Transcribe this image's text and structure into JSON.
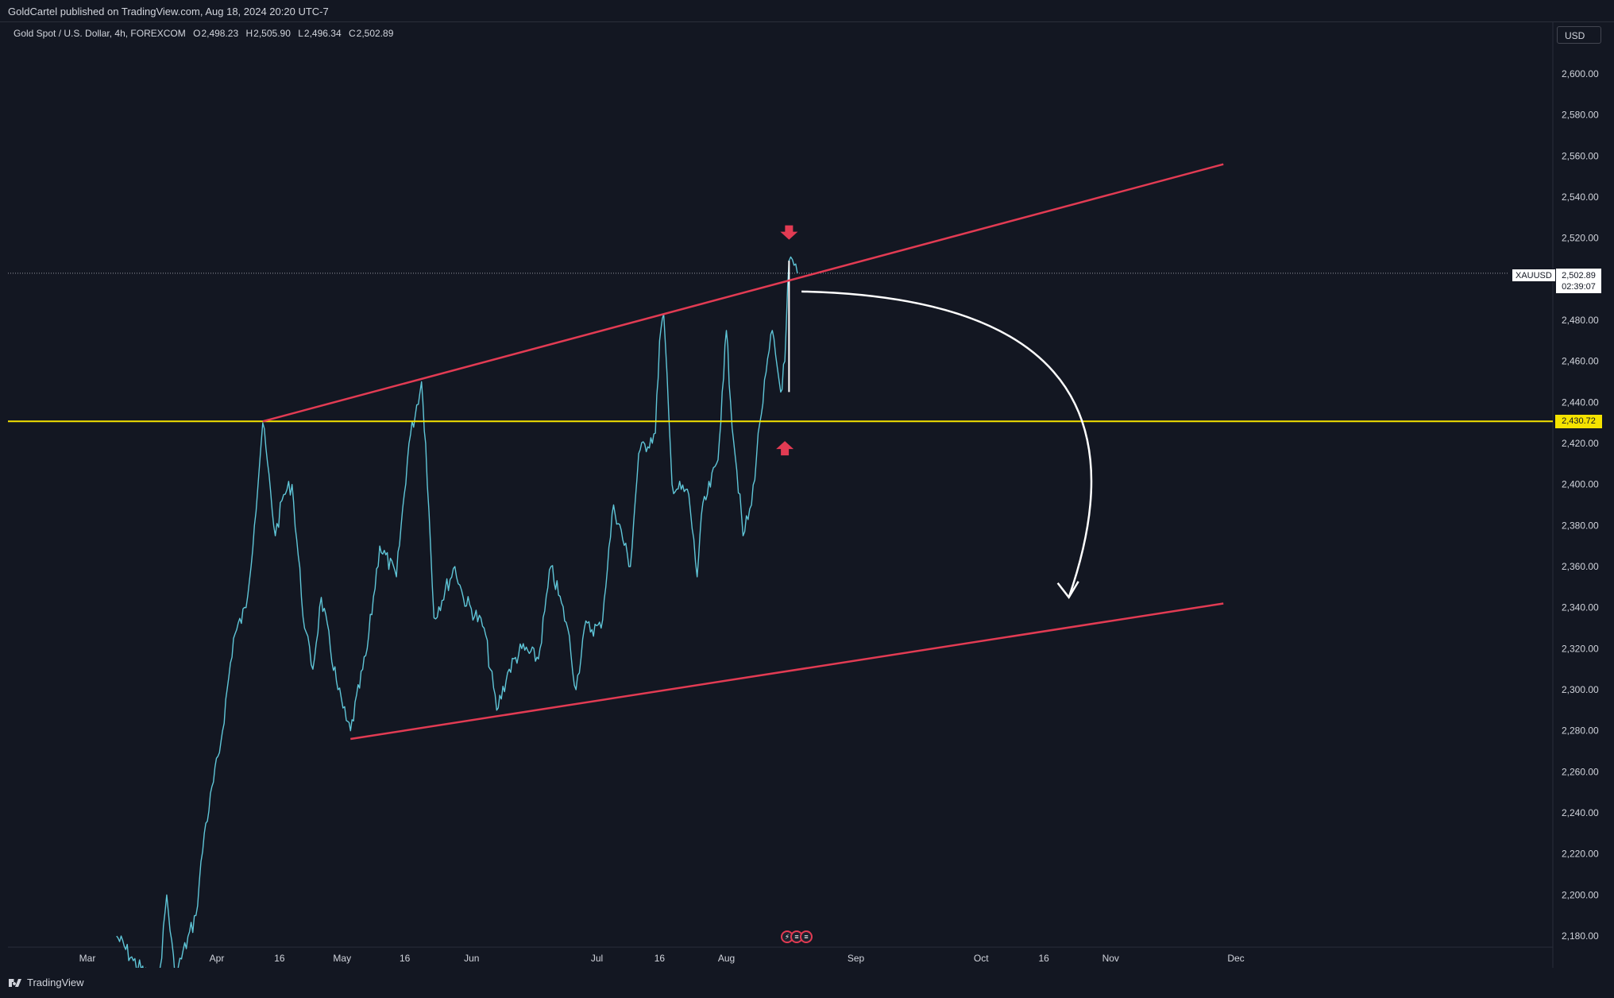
{
  "header": {
    "published_text": "GoldCartel published on TradingView.com, Aug 18, 2024 20:20 UTC-7"
  },
  "legend": {
    "title": "Gold Spot / U.S. Dollar, 4h, FOREXCOM",
    "open_label": "O",
    "open": "2,498.23",
    "high_label": "H",
    "high": "2,505.90",
    "low_label": "L",
    "low": "2,496.34",
    "close_label": "C",
    "close": "2,502.89"
  },
  "currency": "USD",
  "footer": {
    "brand": "TradingView"
  },
  "last_price": {
    "symbol": "XAUUSD",
    "price": "2,502.89",
    "countdown": "02:39:07"
  },
  "reference_line": {
    "price": "2,430.72",
    "color": "#f5e300"
  },
  "colors": {
    "background": "#131722",
    "candles": "#5fc6d8",
    "channel": "#e23b53",
    "arrow": "#ffffff",
    "reference": "#f5e300"
  },
  "events_icon_names": [
    "lightning-icon",
    "us-flag-icon",
    "us-flag-icon"
  ],
  "chart_data": {
    "type": "line",
    "symbol": "XAUUSD",
    "timeframe": "4h",
    "y_axis": {
      "ticks": [
        "2,180.00",
        "2,200.00",
        "2,220.00",
        "2,240.00",
        "2,260.00",
        "2,280.00",
        "2,300.00",
        "2,320.00",
        "2,340.00",
        "2,360.00",
        "2,380.00",
        "2,400.00",
        "2,420.00",
        "2,440.00",
        "2,460.00",
        "2,480.00",
        "2,500.00",
        "2,520.00",
        "2,540.00",
        "2,560.00",
        "2,580.00",
        "2,600.00"
      ],
      "ylim": [
        2172,
        2622
      ]
    },
    "x_axis": {
      "ticks": [
        "Mar",
        "Apr",
        "16",
        "May",
        "16",
        "Jun",
        "Jul",
        "16",
        "Aug",
        "Sep",
        "Oct",
        "16",
        "Nov",
        "Dec"
      ],
      "tick_dates": [
        "2024-03-01",
        "2024-04-01",
        "2024-04-16",
        "2024-05-01",
        "2024-05-16",
        "2024-06-01",
        "2024-07-01",
        "2024-07-16",
        "2024-08-01",
        "2024-09-01",
        "2024-10-01",
        "2024-10-16",
        "2024-11-01",
        "2024-12-01"
      ]
    },
    "price_series": [
      [
        "2024-03-08",
        2180
      ],
      [
        "2024-03-12",
        2168
      ],
      [
        "2024-03-18",
        2155
      ],
      [
        "2024-03-20",
        2200
      ],
      [
        "2024-03-22",
        2160
      ],
      [
        "2024-03-27",
        2190
      ],
      [
        "2024-03-29",
        2230
      ],
      [
        "2024-04-02",
        2275
      ],
      [
        "2024-04-05",
        2325
      ],
      [
        "2024-04-08",
        2340
      ],
      [
        "2024-04-10",
        2380
      ],
      [
        "2024-04-12",
        2430
      ],
      [
        "2024-04-15",
        2375
      ],
      [
        "2024-04-17",
        2395
      ],
      [
        "2024-04-19",
        2400
      ],
      [
        "2024-04-22",
        2330
      ],
      [
        "2024-04-24",
        2310
      ],
      [
        "2024-04-26",
        2345
      ],
      [
        "2024-04-30",
        2300
      ],
      [
        "2024-05-02",
        2285
      ],
      [
        "2024-05-03",
        2280
      ],
      [
        "2024-05-07",
        2320
      ],
      [
        "2024-05-10",
        2370
      ],
      [
        "2024-05-14",
        2355
      ],
      [
        "2024-05-17",
        2420
      ],
      [
        "2024-05-20",
        2450
      ],
      [
        "2024-05-21",
        2420
      ],
      [
        "2024-05-23",
        2335
      ],
      [
        "2024-05-28",
        2360
      ],
      [
        "2024-05-30",
        2345
      ],
      [
        "2024-06-04",
        2330
      ],
      [
        "2024-06-07",
        2290
      ],
      [
        "2024-06-10",
        2310
      ],
      [
        "2024-06-13",
        2320
      ],
      [
        "2024-06-17",
        2315
      ],
      [
        "2024-06-20",
        2360
      ],
      [
        "2024-06-24",
        2330
      ],
      [
        "2024-06-26",
        2300
      ],
      [
        "2024-06-28",
        2330
      ],
      [
        "2024-07-02",
        2330
      ],
      [
        "2024-07-05",
        2390
      ],
      [
        "2024-07-09",
        2360
      ],
      [
        "2024-07-11",
        2415
      ],
      [
        "2024-07-15",
        2425
      ],
      [
        "2024-07-16",
        2470
      ],
      [
        "2024-07-17",
        2483
      ],
      [
        "2024-07-19",
        2400
      ],
      [
        "2024-07-23",
        2395
      ],
      [
        "2024-07-25",
        2355
      ],
      [
        "2024-07-26",
        2385
      ],
      [
        "2024-07-30",
        2412
      ],
      [
        "2024-07-31",
        2445
      ],
      [
        "2024-08-01",
        2475
      ],
      [
        "2024-08-02",
        2440
      ],
      [
        "2024-08-05",
        2375
      ],
      [
        "2024-08-07",
        2390
      ],
      [
        "2024-08-09",
        2430
      ],
      [
        "2024-08-12",
        2475
      ],
      [
        "2024-08-14",
        2445
      ],
      [
        "2024-08-15",
        2460
      ],
      [
        "2024-08-16",
        2509
      ],
      [
        "2024-08-18",
        2502.89
      ]
    ],
    "annotations": {
      "channel_upper": [
        [
          "2024-04-12",
          2430.72
        ],
        [
          "2024-11-28",
          2556
        ]
      ],
      "channel_lower": [
        [
          "2024-05-03",
          2276
        ],
        [
          "2024-11-28",
          2342
        ]
      ],
      "horizontal_line": 2430.72,
      "projection_arrow": [
        [
          "2024-08-19",
          2494
        ],
        [
          "2024-10-22",
          2345
        ]
      ],
      "down_marker": [
        "2024-08-16",
        2520
      ],
      "up_marker": [
        "2024-08-15",
        2418
      ]
    }
  }
}
